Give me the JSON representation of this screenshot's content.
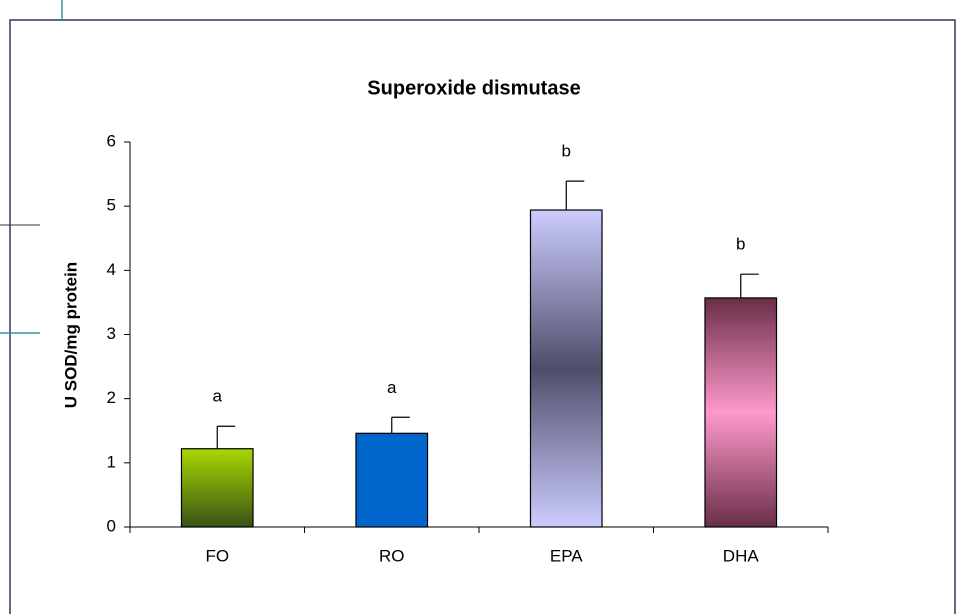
{
  "chart_data": {
    "type": "bar",
    "title": "Superoxide dismutase",
    "y_label": "U SOD/mg protein",
    "categories": [
      "FO",
      "RO",
      "EPA",
      "DHA"
    ],
    "values": [
      1.22,
      1.46,
      4.94,
      3.57
    ],
    "errors": [
      0.35,
      0.25,
      0.45,
      0.37
    ],
    "annotations": [
      "a",
      "a",
      "b",
      "b"
    ],
    "colors": [
      [
        "#a8d800",
        "#3a5216"
      ],
      [
        "#0066cc",
        "#0066cc"
      ],
      [
        "#ccccff",
        "#4e4e6a",
        "#ccccff"
      ],
      [
        "#6a2e48",
        "#ff99cc",
        "#6a2e48"
      ]
    ],
    "ylim": [
      0,
      6
    ],
    "yticks": [
      0,
      1,
      2,
      3,
      4,
      5,
      6
    ],
    "grid": false
  }
}
